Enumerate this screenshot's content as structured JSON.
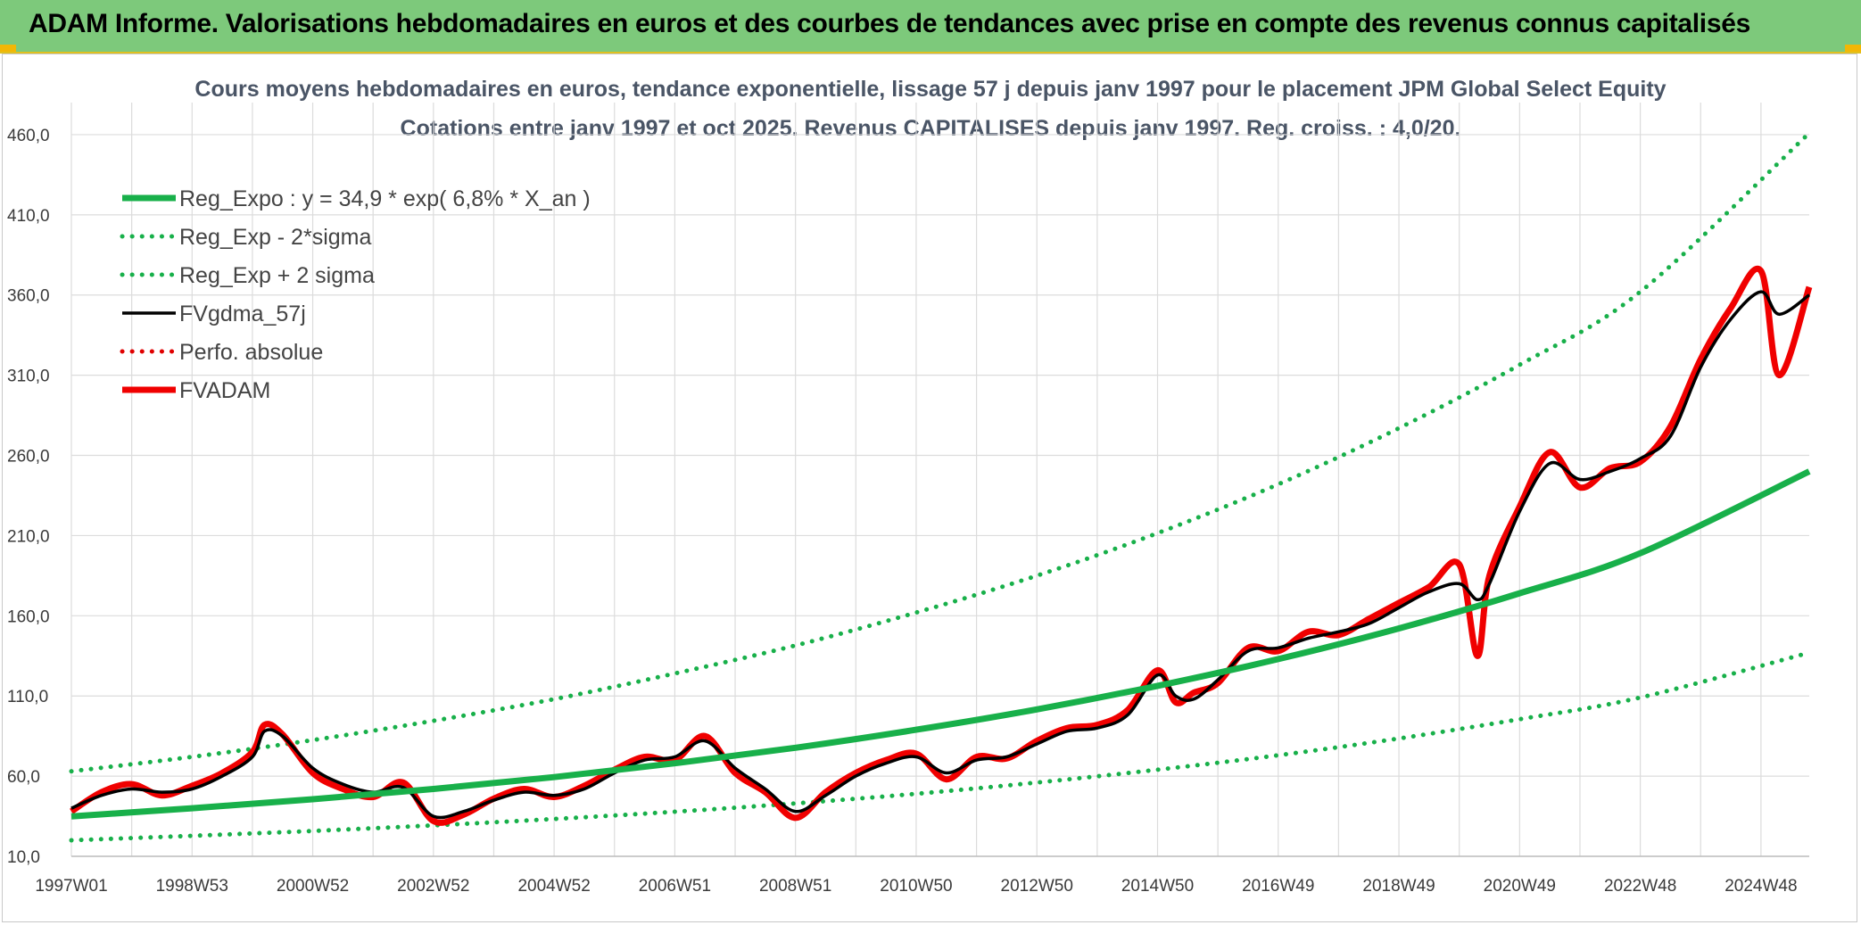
{
  "header": {
    "banner": "ADAM Informe. Valorisations hebdomadaires en euros et des courbes de tendances avec prise en compte des revenus connus capitalisés"
  },
  "colors": {
    "banner_bg": "#7dc97b",
    "reg_expo": "#18b04a",
    "smooth": "#000000",
    "perf": "#e00000",
    "fvadam": "#f00000",
    "grid": "#dcdcdc"
  },
  "chart_data": {
    "type": "line",
    "title": "Cours moyens hebdomadaires en euros, tendance exponentielle, lissage 57 j depuis janv 1997 pour le placement JPM Global Select Equity",
    "subtitle": "Cotations entre janv 1997 et oct 2025. Revenus CAPITALISES depuis janv 1997. Reg. croiss. : 4,0/20.",
    "xlabel": "",
    "ylabel": "",
    "x_range": [
      1997.0,
      2025.8
    ],
    "ylim": [
      10,
      480
    ],
    "grid": true,
    "legend_position": "top-left",
    "y_ticks": [
      "10,0",
      "60,0",
      "110,0",
      "160,0",
      "210,0",
      "260,0",
      "310,0",
      "360,0",
      "410,0",
      "460,0"
    ],
    "x_ticks": [
      {
        "label": "1997W01",
        "x": 1997.0
      },
      {
        "label": "1998W53",
        "x": 1999.0
      },
      {
        "label": "2000W52",
        "x": 2001.0
      },
      {
        "label": "2002W52",
        "x": 2003.0
      },
      {
        "label": "2004W52",
        "x": 2005.0
      },
      {
        "label": "2006W51",
        "x": 2007.0
      },
      {
        "label": "2008W51",
        "x": 2009.0
      },
      {
        "label": "2010W50",
        "x": 2011.0
      },
      {
        "label": "2012W50",
        "x": 2013.0
      },
      {
        "label": "2014W50",
        "x": 2015.0
      },
      {
        "label": "2016W49",
        "x": 2017.0
      },
      {
        "label": "2018W49",
        "x": 2019.0
      },
      {
        "label": "2020W49",
        "x": 2021.0
      },
      {
        "label": "2022W48",
        "x": 2023.0
      },
      {
        "label": "2024W48",
        "x": 2025.0
      }
    ],
    "series": [
      {
        "name": "Reg_Expo : y = 34,9 * exp( 6,8% *  X_an )",
        "style": "solid-thick",
        "color": "#18b04a",
        "x": [
          1997,
          1999,
          2001,
          2003,
          2005,
          2007,
          2009,
          2011,
          2013,
          2015,
          2017,
          2019,
          2021,
          2023,
          2025.8
        ],
        "values": [
          34.9,
          40,
          45.6,
          52,
          59.4,
          68,
          77.7,
          88.9,
          101.6,
          116.3,
          133,
          152.1,
          174,
          199,
          250
        ]
      },
      {
        "name": "Reg_Exp - 2*sigma",
        "style": "dotted",
        "color": "#18b04a",
        "x": [
          1997,
          1999,
          2001,
          2003,
          2005,
          2007,
          2009,
          2011,
          2013,
          2015,
          2017,
          2019,
          2021,
          2023,
          2025.8
        ],
        "values": [
          20,
          22.8,
          25.8,
          29.3,
          33.3,
          37.8,
          43,
          49,
          56,
          64,
          73,
          83.5,
          95.5,
          109,
          137
        ]
      },
      {
        "name": "Reg_Exp + 2 sigma",
        "style": "dotted",
        "color": "#18b04a",
        "x": [
          1997,
          1999,
          2001,
          2003,
          2005,
          2007,
          2009,
          2011,
          2013,
          2015,
          2017,
          2019,
          2021,
          2023,
          2025.8
        ],
        "values": [
          63,
          72,
          82.5,
          94.5,
          108,
          124,
          141.5,
          162,
          185,
          211.5,
          242,
          277,
          316.5,
          362,
          461
        ]
      },
      {
        "name": "FVgdma_57j",
        "style": "solid",
        "color": "#000000",
        "x": [
          1997.0,
          1997.5,
          1998.0,
          1998.5,
          1999.0,
          1999.5,
          2000.0,
          2000.2,
          2000.5,
          2001.0,
          2001.5,
          2002.0,
          2002.5,
          2003.0,
          2003.5,
          2004.0,
          2004.5,
          2005.0,
          2005.5,
          2006.0,
          2006.5,
          2007.0,
          2007.5,
          2008.0,
          2008.5,
          2009.0,
          2009.5,
          2010.0,
          2010.5,
          2011.0,
          2011.5,
          2012.0,
          2012.5,
          2013.0,
          2013.5,
          2014.0,
          2014.5,
          2015.0,
          2015.3,
          2015.6,
          2016.0,
          2016.5,
          2017.0,
          2017.5,
          2018.0,
          2018.5,
          2019.0,
          2019.5,
          2020.0,
          2020.3,
          2020.5,
          2021.0,
          2021.5,
          2022.0,
          2022.5,
          2023.0,
          2023.5,
          2024.0,
          2024.5,
          2025.0,
          2025.3,
          2025.8
        ],
        "values": [
          40,
          48,
          52,
          50,
          52,
          60,
          72,
          88,
          85,
          65,
          55,
          50,
          53,
          35,
          38,
          45,
          50,
          48,
          52,
          62,
          70,
          72,
          82,
          65,
          52,
          38,
          48,
          60,
          68,
          72,
          62,
          70,
          72,
          80,
          88,
          90,
          98,
          123,
          110,
          108,
          120,
          138,
          140,
          146,
          150,
          155,
          165,
          175,
          180,
          170,
          180,
          225,
          255,
          245,
          250,
          258,
          272,
          315,
          345,
          362,
          348,
          360
        ]
      },
      {
        "name": "Perfo. absolue",
        "style": "dotted",
        "color": "#e00000",
        "x": [],
        "values": []
      },
      {
        "name": "FVADAM",
        "style": "solid-thick",
        "color": "#f00000",
        "x": [
          1997.0,
          1997.5,
          1998.0,
          1998.5,
          1999.0,
          1999.5,
          2000.0,
          2000.2,
          2000.5,
          2001.0,
          2001.5,
          2002.0,
          2002.5,
          2003.0,
          2003.5,
          2004.0,
          2004.5,
          2005.0,
          2005.5,
          2006.0,
          2006.5,
          2007.0,
          2007.5,
          2008.0,
          2008.5,
          2009.0,
          2009.5,
          2010.0,
          2010.5,
          2011.0,
          2011.5,
          2012.0,
          2012.5,
          2013.0,
          2013.5,
          2014.0,
          2014.5,
          2015.0,
          2015.3,
          2015.6,
          2016.0,
          2016.5,
          2017.0,
          2017.5,
          2018.0,
          2018.5,
          2019.0,
          2019.5,
          2020.0,
          2020.3,
          2020.5,
          2021.0,
          2021.5,
          2022.0,
          2022.5,
          2023.0,
          2023.5,
          2024.0,
          2024.5,
          2025.0,
          2025.3,
          2025.8
        ],
        "values": [
          38,
          50,
          55,
          48,
          54,
          62,
          75,
          92,
          86,
          62,
          52,
          47,
          56,
          32,
          36,
          46,
          52,
          47,
          54,
          64,
          72,
          70,
          85,
          62,
          50,
          34,
          50,
          62,
          70,
          74,
          58,
          72,
          71,
          82,
          90,
          92,
          101,
          126,
          106,
          112,
          118,
          140,
          138,
          150,
          148,
          158,
          168,
          178,
          192,
          135,
          185,
          228,
          262,
          240,
          252,
          256,
          278,
          320,
          352,
          375,
          310,
          365
        ]
      }
    ]
  }
}
